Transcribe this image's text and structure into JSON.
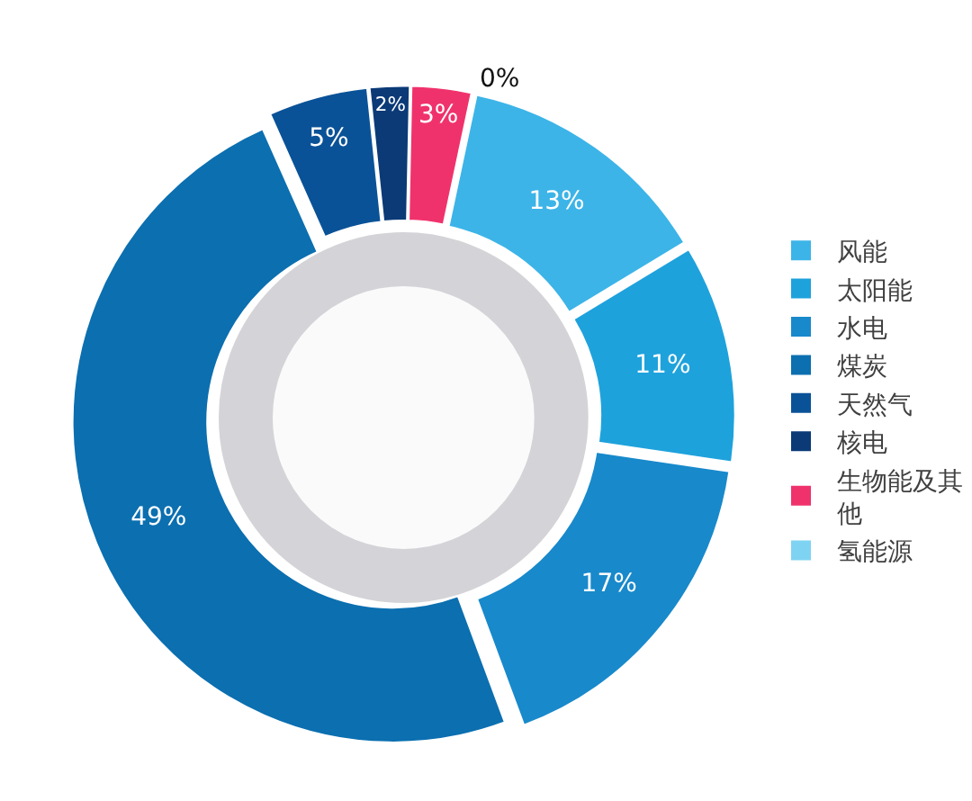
{
  "chart_data": {
    "type": "donut",
    "categories": [
      "风能",
      "太阳能",
      "水电",
      "煤炭",
      "天然气",
      "核电",
      "生物能及其他",
      "氢能源"
    ],
    "values": [
      13,
      11,
      17,
      49,
      5,
      2,
      3,
      0
    ],
    "value_labels": [
      "13%",
      "11%",
      "17%",
      "49%",
      "5%",
      "2%",
      "3%",
      "0%"
    ],
    "colors": [
      "#3cb4e8",
      "#1ea2dc",
      "#1889cb",
      "#0b6fb0",
      "#0a5297",
      "#0b3a77",
      "#f0326c",
      "#7fd3f2"
    ],
    "legend": "right"
  }
}
